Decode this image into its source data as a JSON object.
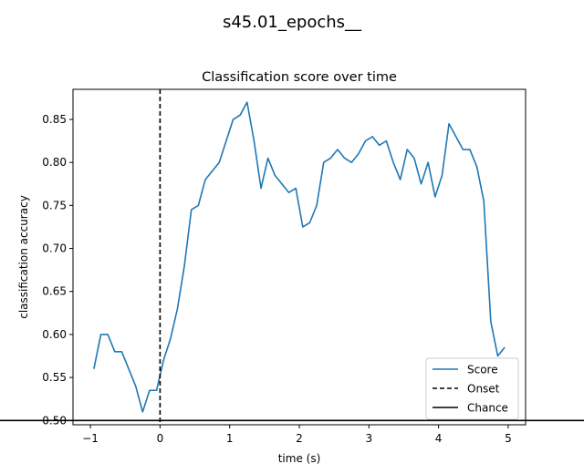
{
  "suptitle": "s45.01_epochs__",
  "chart_data": {
    "type": "line",
    "title": "Classification score over time",
    "xlabel": "time (s)",
    "ylabel": "classification accuracy",
    "xlim": [
      -1.25,
      5.25
    ],
    "ylim": [
      0.495,
      0.885
    ],
    "xticks": [
      -1,
      0,
      1,
      2,
      3,
      4,
      5
    ],
    "xtick_labels": [
      "−1",
      "0",
      "1",
      "2",
      "3",
      "4",
      "5"
    ],
    "yticks": [
      0.5,
      0.55,
      0.6,
      0.65,
      0.7,
      0.75,
      0.8,
      0.85
    ],
    "ytick_labels": [
      "0.50",
      "0.55",
      "0.60",
      "0.65",
      "0.70",
      "0.75",
      "0.80",
      "0.85"
    ],
    "grid": false,
    "legend_position": "lower-right",
    "series": [
      {
        "name": "Score",
        "color": "#1f77b4",
        "style": "solid",
        "x": [
          -0.95,
          -0.85,
          -0.75,
          -0.65,
          -0.55,
          -0.45,
          -0.35,
          -0.25,
          -0.15,
          -0.05,
          0.05,
          0.15,
          0.25,
          0.35,
          0.45,
          0.55,
          0.65,
          0.75,
          0.85,
          0.95,
          1.05,
          1.15,
          1.25,
          1.35,
          1.45,
          1.55,
          1.65,
          1.75,
          1.85,
          1.95,
          2.05,
          2.15,
          2.25,
          2.35,
          2.45,
          2.55,
          2.65,
          2.75,
          2.85,
          2.95,
          3.05,
          3.15,
          3.25,
          3.35,
          3.45,
          3.55,
          3.65,
          3.75,
          3.85,
          3.95,
          4.05,
          4.15,
          4.25,
          4.35,
          4.45,
          4.55,
          4.65,
          4.75,
          4.85,
          4.95
        ],
        "y": [
          0.56,
          0.6,
          0.6,
          0.58,
          0.58,
          0.56,
          0.54,
          0.51,
          0.535,
          0.535,
          0.57,
          0.595,
          0.63,
          0.68,
          0.745,
          0.75,
          0.78,
          0.79,
          0.8,
          0.825,
          0.85,
          0.855,
          0.87,
          0.825,
          0.77,
          0.805,
          0.785,
          0.775,
          0.765,
          0.77,
          0.725,
          0.73,
          0.75,
          0.8,
          0.805,
          0.815,
          0.805,
          0.8,
          0.81,
          0.825,
          0.83,
          0.82,
          0.825,
          0.8,
          0.78,
          0.815,
          0.805,
          0.775,
          0.8,
          0.76,
          0.785,
          0.845,
          0.83,
          0.815,
          0.815,
          0.795,
          0.755,
          0.615,
          0.575,
          0.585
        ]
      },
      {
        "name": "Onset",
        "color": "#000000",
        "style": "dashed",
        "x_value": 0
      },
      {
        "name": "Chance",
        "color": "#000000",
        "style": "solid",
        "y_value": 0.5
      }
    ]
  }
}
